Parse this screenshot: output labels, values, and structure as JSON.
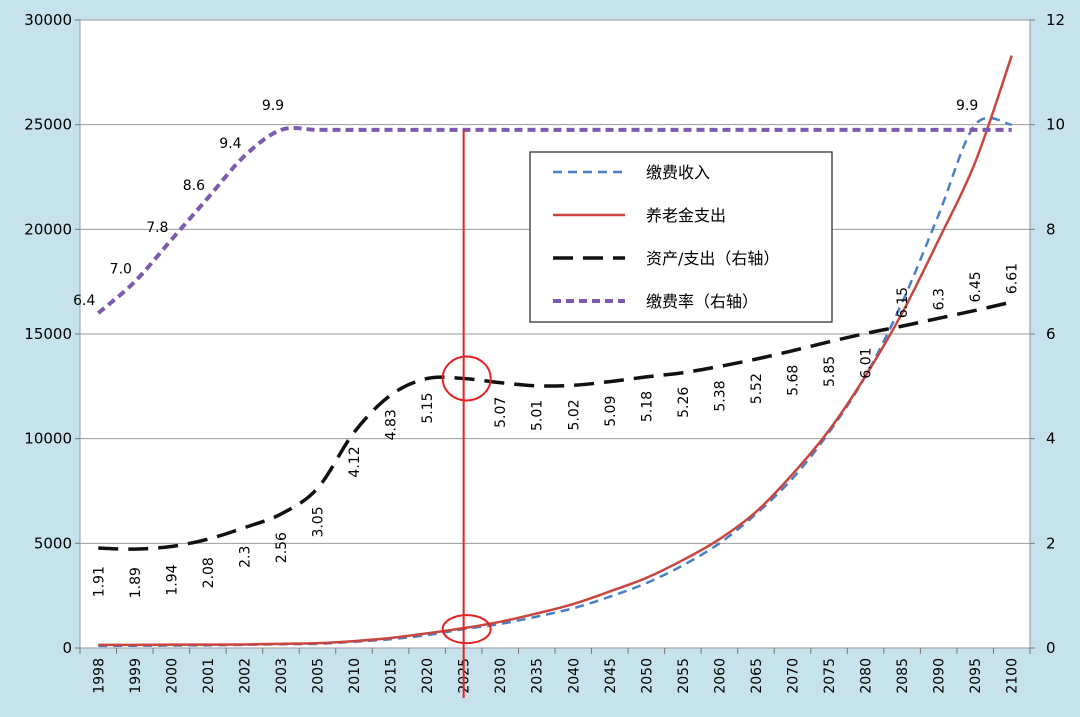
{
  "chart_data": {
    "type": "line",
    "title": "",
    "xlabel": "",
    "ylabel": "",
    "y2label": "",
    "categories": [
      "1998",
      "1999",
      "2000",
      "2001",
      "2002",
      "2003",
      "2005",
      "2010",
      "2015",
      "2020",
      "2025",
      "2030",
      "2035",
      "2040",
      "2045",
      "2050",
      "2055",
      "2060",
      "2065",
      "2070",
      "2075",
      "2080",
      "2085",
      "2090",
      "2095",
      "2100"
    ],
    "ylim": [
      0,
      30000
    ],
    "yticks": [
      0,
      5000,
      10000,
      15000,
      20000,
      25000,
      30000
    ],
    "y2lim": [
      0,
      12
    ],
    "y2ticks": [
      0,
      2,
      4,
      6,
      8,
      10,
      12
    ],
    "grid": true,
    "legend_position": "upper-center",
    "series": [
      {
        "name": "缴费收入",
        "axis": "left",
        "style": "blue-dashed",
        "color": "#4a7ec6",
        "values": [
          100,
          110,
          120,
          130,
          150,
          180,
          200,
          300,
          420,
          620,
          900,
          1150,
          1500,
          1900,
          2450,
          3100,
          3950,
          5000,
          6400,
          8100,
          10300,
          13000,
          16500,
          20700,
          25000,
          25000
        ]
      },
      {
        "name": "养老金支出",
        "axis": "left",
        "style": "red-solid",
        "color": "#c8463d",
        "values": [
          150,
          150,
          160,
          160,
          170,
          200,
          230,
          330,
          480,
          700,
          950,
          1250,
          1650,
          2100,
          2700,
          3350,
          4200,
          5200,
          6500,
          8300,
          10400,
          13000,
          16000,
          19500,
          23200,
          28300
        ]
      },
      {
        "name": "资产/支出（右轴）",
        "axis": "right",
        "style": "black-dashed",
        "color": "#111111",
        "values": [
          1.91,
          1.89,
          1.94,
          2.08,
          2.3,
          2.56,
          3.05,
          4.12,
          4.83,
          5.15,
          5.15,
          5.07,
          5.01,
          5.02,
          5.09,
          5.18,
          5.26,
          5.38,
          5.52,
          5.68,
          5.85,
          6.01,
          6.15,
          6.3,
          6.45,
          6.61
        ],
        "data_labels": [
          "1.91",
          "1.89",
          "1.94",
          "2.08",
          "2.3",
          "2.56",
          "3.05",
          "4.12",
          "4.83",
          "5.15",
          "",
          "5.07",
          "5.01",
          "5.02",
          "5.09",
          "5.18",
          "5.26",
          "5.38",
          "5.52",
          "5.68",
          "5.85",
          "6.01",
          "6.15",
          "6.3",
          "6.45",
          "6.61"
        ]
      },
      {
        "name": "缴费率（右轴）",
        "axis": "right",
        "style": "purple-dashed",
        "color": "#7c5ab0",
        "values": [
          6.4,
          7.0,
          7.8,
          8.6,
          9.4,
          9.9,
          9.9,
          9.9,
          9.9,
          9.9,
          9.9,
          9.9,
          9.9,
          9.9,
          9.9,
          9.9,
          9.9,
          9.9,
          9.9,
          9.9,
          9.9,
          9.9,
          9.9,
          9.9,
          9.9,
          9.9
        ],
        "data_labels": [
          "6.4",
          "7.0",
          "7.8",
          "8.6",
          "9.4",
          "9.9",
          "",
          "",
          "",
          "",
          "",
          "",
          "",
          "",
          "",
          "",
          "",
          "",
          "",
          "",
          "",
          "",
          "",
          "",
          "9.9",
          ""
        ]
      }
    ],
    "annotations": [
      {
        "type": "vertical-line",
        "at_category": "2025",
        "color": "#e82020"
      },
      {
        "type": "circle",
        "at_category": "2025",
        "axis": "right",
        "value": 5.15,
        "color": "#e82020"
      },
      {
        "type": "circle",
        "at_category": "2025",
        "axis": "left",
        "value": 900,
        "color": "#e82020"
      }
    ]
  }
}
